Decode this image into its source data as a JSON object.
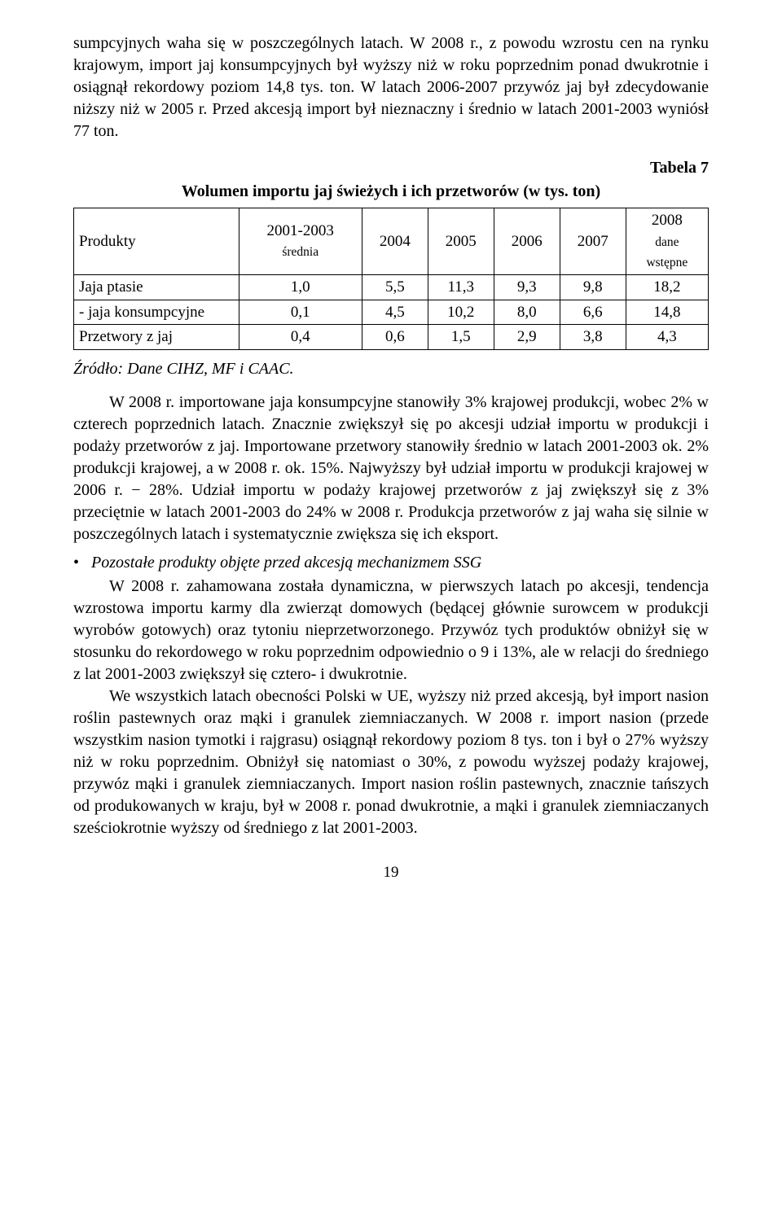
{
  "para1": "sumpcyjnych waha się w poszczególnych latach. W 2008 r., z powodu wzrostu cen na rynku krajowym, import jaj konsumpcyjnych był wyższy niż w roku poprzednim ponad dwukrotnie i osiągnął rekordowy poziom 14,8 tys. ton. W latach 2006-2007 przywóz jaj był zdecydowanie niższy niż w 2005 r. Przed akcesją import był nieznaczny i średnio w latach 2001-2003 wyniósł 77 ton.",
  "table": {
    "label": "Tabela 7",
    "title": "Wolumen importu jaj świeżych i ich przetworów (w tys. ton)",
    "headers": {
      "c0": "Produkty",
      "c1a": "2001-2003",
      "c1b": "średnia",
      "c2": "2004",
      "c3": "2005",
      "c4": "2006",
      "c5": "2007",
      "c6a": "2008",
      "c6b": "dane",
      "c6c": "wstępne"
    },
    "rows": [
      {
        "c0": "Jaja ptasie",
        "c1": "1,0",
        "c2": "5,5",
        "c3": "11,3",
        "c4": "9,3",
        "c5": "9,8",
        "c6": "18,2"
      },
      {
        "c0": " - jaja konsumpcyjne",
        "c1": "0,1",
        "c2": "4,5",
        "c3": "10,2",
        "c4": "8,0",
        "c5": "6,6",
        "c6": "14,8"
      },
      {
        "c0": "Przetwory z jaj",
        "c1": "0,4",
        "c2": "0,6",
        "c3": "1,5",
        "c4": "2,9",
        "c5": "3,8",
        "c6": "4,3"
      }
    ]
  },
  "source": "Źródło: Dane CIHZ, MF i CAAC.",
  "para2": "W 2008 r. importowane jaja konsumpcyjne stanowiły 3% krajowej produkcji, wobec 2% w czterech poprzednich latach. Znacznie zwiększył się po akcesji udział importu w produkcji i podaży przetworów z jaj. Importowane przetwory stanowiły średnio w latach 2001-2003 ok. 2% produkcji krajowej, a w 2008 r. ok. 15%. Najwyższy był udział importu w produkcji krajowej w 2006 r. − 28%. Udział importu w podaży krajowej przetworów z jaj zwiększył się z 3% przeciętnie w latach 2001-2003 do 24% w 2008 r. Produkcja przetworów z jaj waha się silnie w poszczególnych latach i systematycznie zwiększa się ich eksport.",
  "bullet1": "Pozostałe produkty objęte przed akcesją mechanizmem SSG",
  "para3": "W 2008 r. zahamowana została dynamiczna, w pierwszych latach po akcesji, tendencja wzrostowa importu karmy dla zwierząt domowych (będącej głównie surowcem w produkcji wyrobów gotowych) oraz tytoniu nieprzetworzonego. Przywóz tych produktów obniżył się w stosunku do rekordowego w roku poprzednim odpowiednio o 9 i 13%, ale w relacji do średniego z lat 2001-2003 zwiększył się cztero- i dwukrotnie.",
  "para4": "We wszystkich latach obecności Polski w UE, wyższy niż przed akcesją, był import nasion roślin pastewnych oraz mąki i granulek ziemniaczanych. W 2008 r. import nasion (przede wszystkim nasion tymotki i rajgrasu) osiągnął rekordowy poziom 8 tys. ton i był o 27% wyższy niż w roku poprzednim. Obniżył się natomiast o 30%, z powodu wyższej podaży krajowej, przywóz mąki i granulek ziemniaczanych. Import nasion roślin pastewnych, znacznie tańszych od produkowanych w kraju, był w 2008 r. ponad dwukrotnie, a mąki i granulek ziemniaczanych sześciokrotnie wyższy od średniego z lat 2001-2003.",
  "pageNumber": "19"
}
